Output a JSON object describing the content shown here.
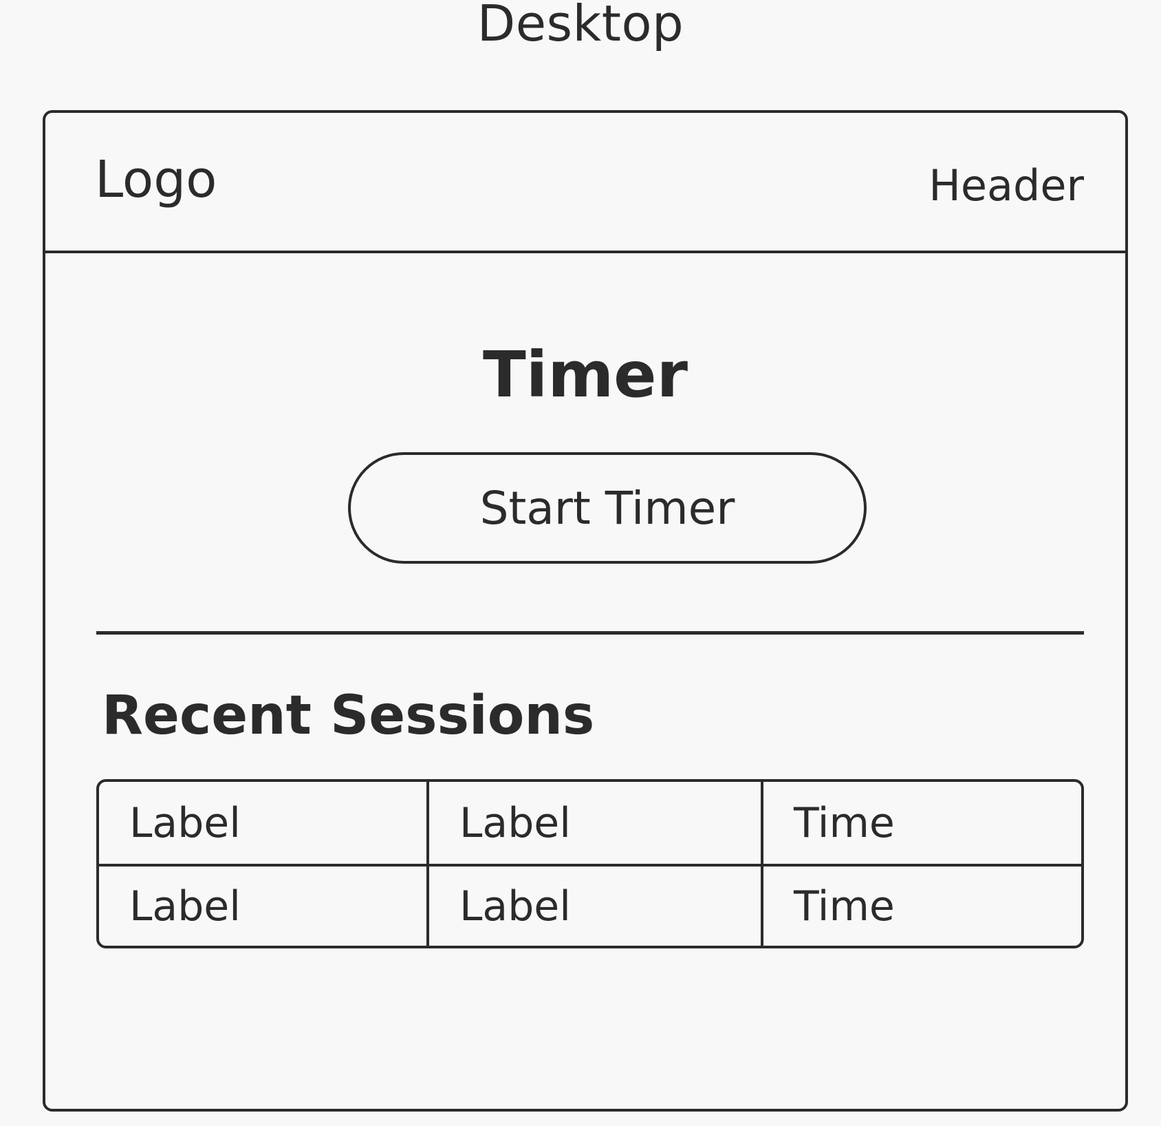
{
  "page": {
    "title": "Desktop"
  },
  "header": {
    "logo": "Logo",
    "label": "Header"
  },
  "main": {
    "timer_title": "Timer",
    "start_button_label": "Start Timer"
  },
  "sessions": {
    "title": "Recent Sessions",
    "rows": [
      [
        "Label",
        "Label",
        "Time"
      ],
      [
        "Label",
        "Label",
        "Time"
      ]
    ]
  },
  "colors": {
    "background": "#f8f8f8",
    "stroke": "#2b2b2b"
  }
}
